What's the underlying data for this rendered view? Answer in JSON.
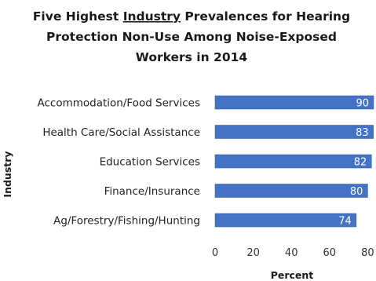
{
  "chart_data": {
    "type": "bar",
    "orientation": "horizontal",
    "title_lines": [
      [
        "Five Highest ",
        "Industry",
        " Prevalences for Hearing"
      ],
      [
        "Protection Non-Use Among Noise-Exposed"
      ],
      [
        "Workers in 2014"
      ]
    ],
    "underlined_word": "Industry",
    "categories": [
      "Accommodation/Food Services",
      "Health Care/Social Assistance",
      "Education Services",
      "Finance/Insurance",
      "Ag/Forestry/Fishing/Hunting"
    ],
    "values": [
      90,
      83,
      82,
      80,
      74
    ],
    "data_labels": [
      "90",
      "83",
      "82",
      "80",
      "74"
    ],
    "xlabel": "Percent",
    "ylabel": "Industry",
    "x_ticks": [
      0,
      20,
      40,
      60,
      80
    ],
    "xlim": [
      0,
      80
    ],
    "bar_color": "#4472c4",
    "bar_label_color": "#ffffff",
    "grid": false,
    "legend": "none"
  }
}
